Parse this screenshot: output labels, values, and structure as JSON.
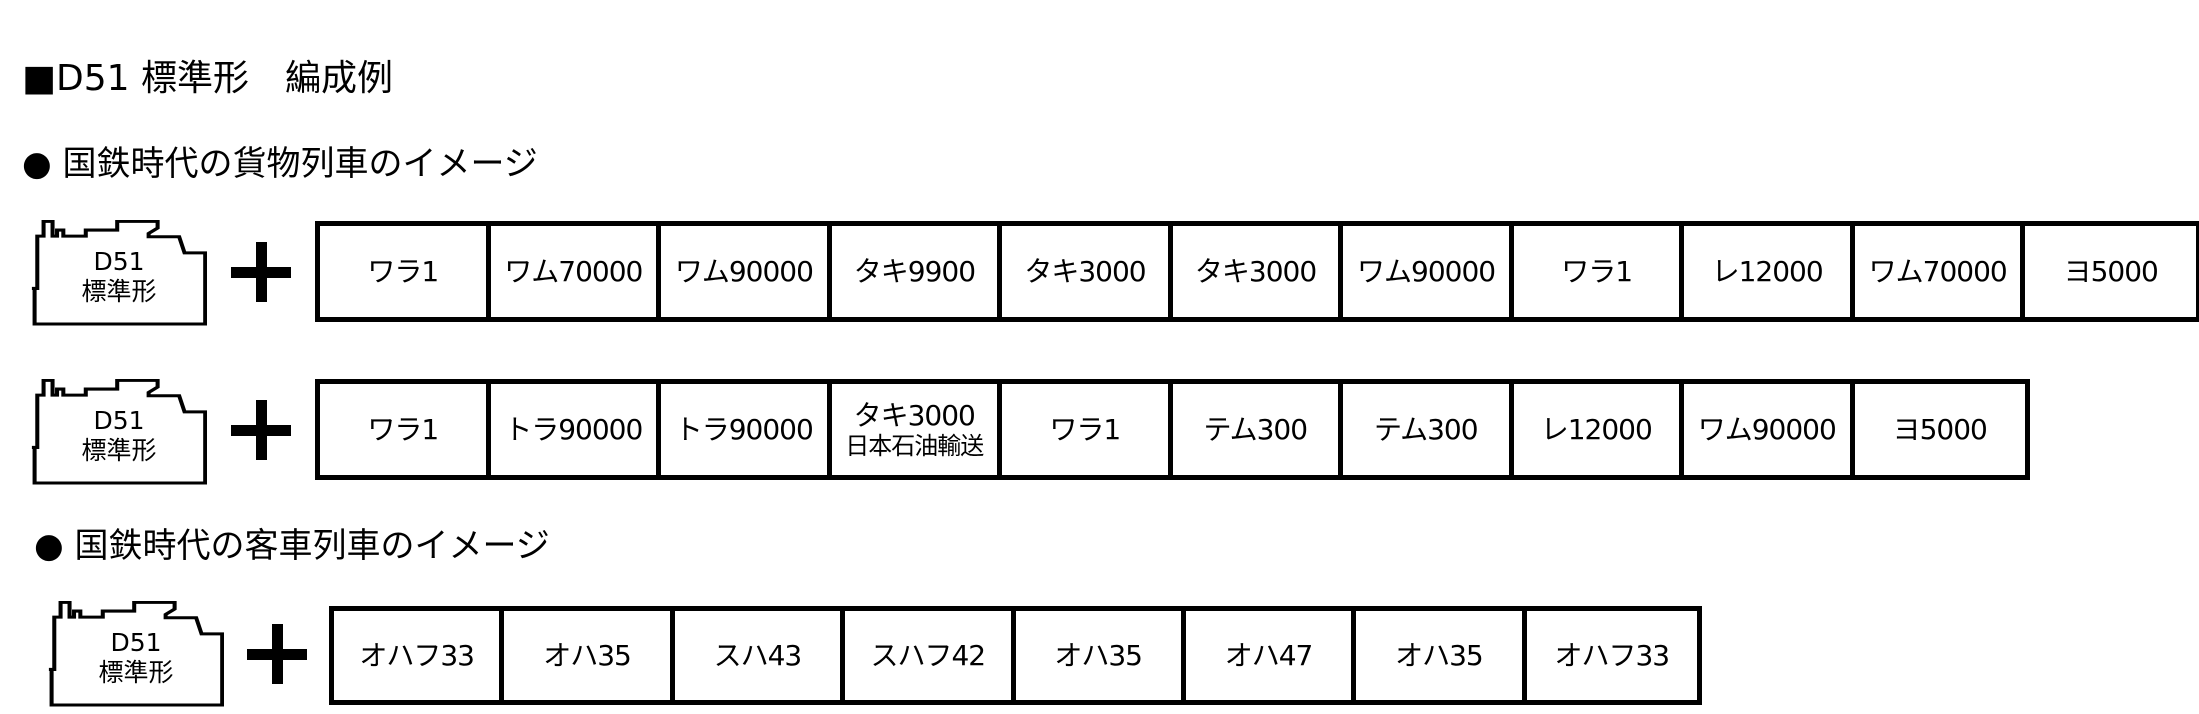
{
  "title": "■D51 標準形　編成例",
  "sections": [
    {
      "heading": "● 国鉄時代の貨物列車のイメージ"
    },
    {
      "heading": "● 国鉄時代の客車列車のイメージ"
    }
  ],
  "locomotive": {
    "name": "D51",
    "type": "標準形"
  },
  "plus_icon": "plus-icon",
  "trains": [
    {
      "cars": [
        {
          "name": "ワラ1"
        },
        {
          "name": "ワム70000"
        },
        {
          "name": "ワム90000"
        },
        {
          "name": "タキ9900"
        },
        {
          "name": "タキ3000"
        },
        {
          "name": "タキ3000"
        },
        {
          "name": "ワム90000"
        },
        {
          "name": "ワラ1"
        },
        {
          "name": "レ12000"
        },
        {
          "name": "ワム70000"
        },
        {
          "name": "ヨ5000"
        }
      ]
    },
    {
      "cars": [
        {
          "name": "ワラ1"
        },
        {
          "name": "トラ90000"
        },
        {
          "name": "トラ90000"
        },
        {
          "name": "タキ3000",
          "sub": "日本石油輸送"
        },
        {
          "name": "ワラ1"
        },
        {
          "name": "テム300"
        },
        {
          "name": "テム300"
        },
        {
          "name": "レ12000"
        },
        {
          "name": "ワム90000"
        },
        {
          "name": "ヨ5000"
        }
      ]
    },
    {
      "cars": [
        {
          "name": "オハフ33"
        },
        {
          "name": "オハ35"
        },
        {
          "name": "スハ43"
        },
        {
          "name": "スハフ42"
        },
        {
          "name": "オハ35"
        },
        {
          "name": "オハ47"
        },
        {
          "name": "オハ35"
        },
        {
          "name": "オハフ33"
        }
      ]
    }
  ]
}
